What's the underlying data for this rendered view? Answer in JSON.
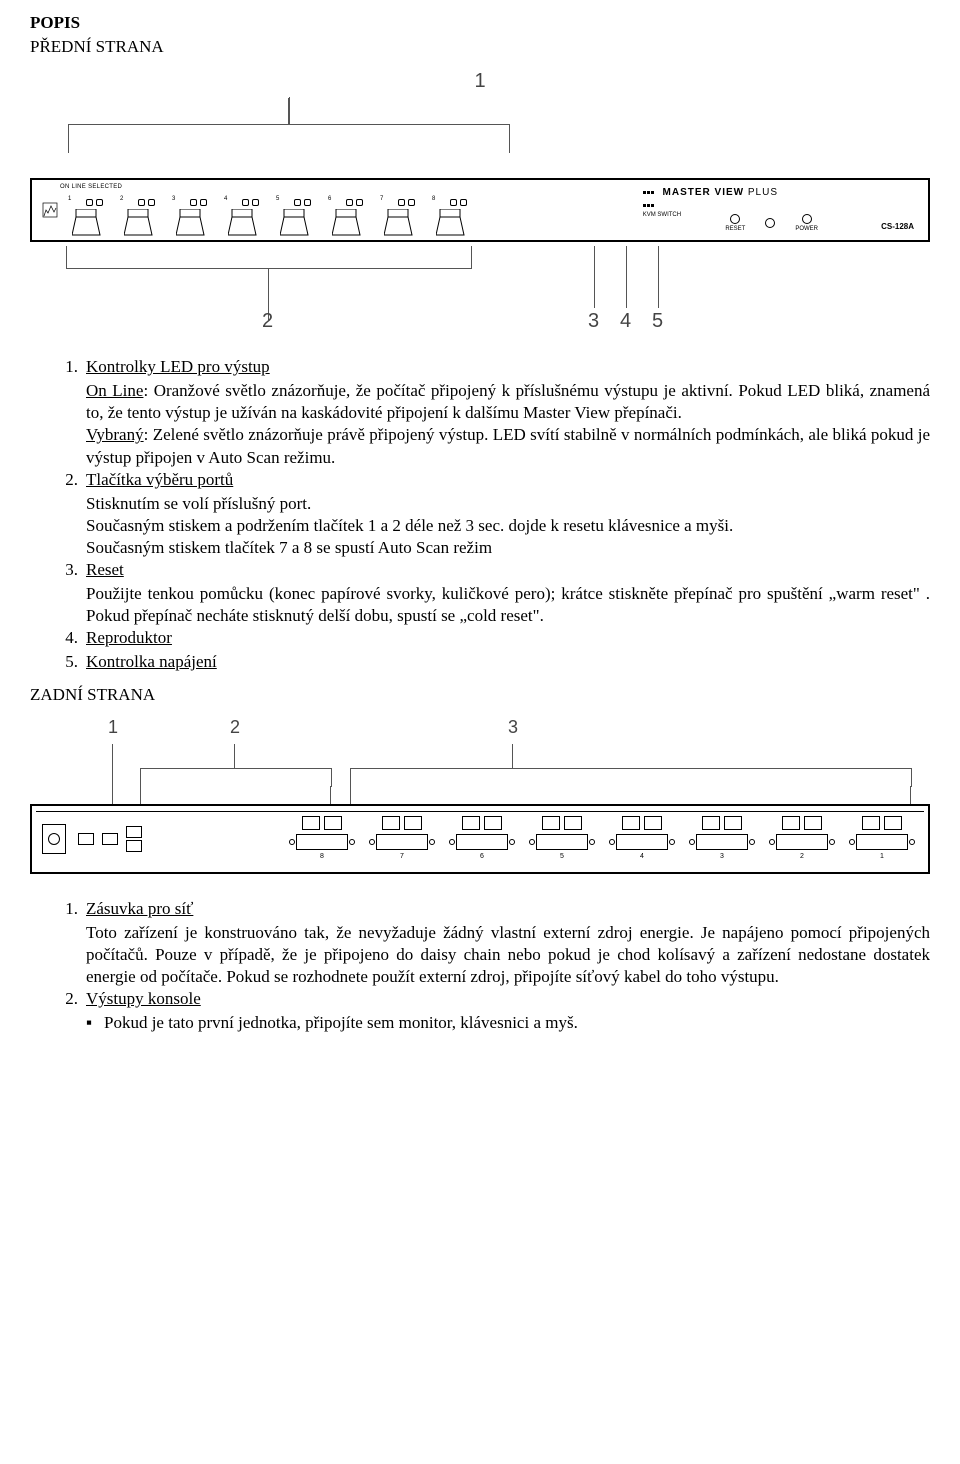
{
  "headings": {
    "popis": "POPIS",
    "predni": "PŘEDNÍ STRANA",
    "zadni": "ZADNÍ STRANA"
  },
  "front_diagram": {
    "top_callout": "1",
    "panel_top_label": "ON LINE SELECTED",
    "brand_line1": "MASTER VIEW",
    "brand_suffix": "PLUS",
    "brand_line2": "KVM SWITCH",
    "switch_count": 8,
    "right_items": [
      "RESET",
      "",
      "POWER"
    ],
    "model": "CS-128A",
    "bottom_callouts": [
      "2",
      "3",
      "4",
      "5"
    ]
  },
  "front_list": [
    {
      "num": "1.",
      "title": "Kontrolky LED pro výstup",
      "paras": [
        [
          {
            "u": true,
            "t": "On Line"
          },
          {
            "t": ": Oranžové světlo znázorňuje, že počítač připojený k příslušnému výstupu je aktivní. Pokud LED bliká, znamená to, že tento výstup je užíván na kaskádovité připojení k dalšímu Master View přepínači."
          }
        ],
        [
          {
            "u": true,
            "t": "Vybraný"
          },
          {
            "t": ": Zelené světlo znázorňuje právě připojený výstup. LED svítí stabilně v normálních podmínkách, ale bliká pokud je výstup připojen v Auto Scan režimu."
          }
        ]
      ]
    },
    {
      "num": "2.",
      "title": "Tlačítka výběru portů",
      "paras": [
        [
          {
            "t": "Stisknutím se volí příslušný port."
          }
        ],
        [
          {
            "t": "Současným stiskem a podržením tlačítek 1 a 2 déle než 3 sec. dojde k resetu klávesnice a myši."
          }
        ],
        [
          {
            "t": "Současným stiskem tlačítek 7 a 8 se spustí Auto Scan režim"
          }
        ]
      ]
    },
    {
      "num": "3.",
      "title": "Reset",
      "paras": [
        [
          {
            "t": "Použijte tenkou pomůcku (konec papírové svorky, kuličkové pero); krátce stiskněte přepínač pro spuštění „warm reset\" . Pokud přepínač necháte stisknutý delší dobu, spustí se „cold reset\"."
          }
        ]
      ]
    },
    {
      "num": "4.",
      "title": "Reproduktor",
      "paras": []
    },
    {
      "num": "5.",
      "title": "Kontrolka napájení",
      "paras": []
    }
  ],
  "rear_diagram": {
    "callouts": [
      "1",
      "2",
      "3"
    ],
    "port_count": 8
  },
  "rear_list": [
    {
      "num": "1.",
      "title": "Zásuvka pro síť",
      "paras": [
        [
          {
            "t": "Toto zařízení je konstruováno tak, že nevyžaduje žádný vlastní externí zdroj energie. Je napájeno pomocí připojených počítačů. Pouze v případě, že je připojeno do daisy chain nebo pokud je chod kolísavý a zařízení nedostane dostatek energie od počítače. Pokud se rozhodnete použít externí zdroj, připojíte síťový kabel do toho výstupu."
          }
        ]
      ]
    },
    {
      "num": "2.",
      "title": "Výstupy konsole",
      "bullets": [
        "Pokud je tato první jednotka, připojíte sem monitor, klávesnici a myš."
      ]
    }
  ]
}
